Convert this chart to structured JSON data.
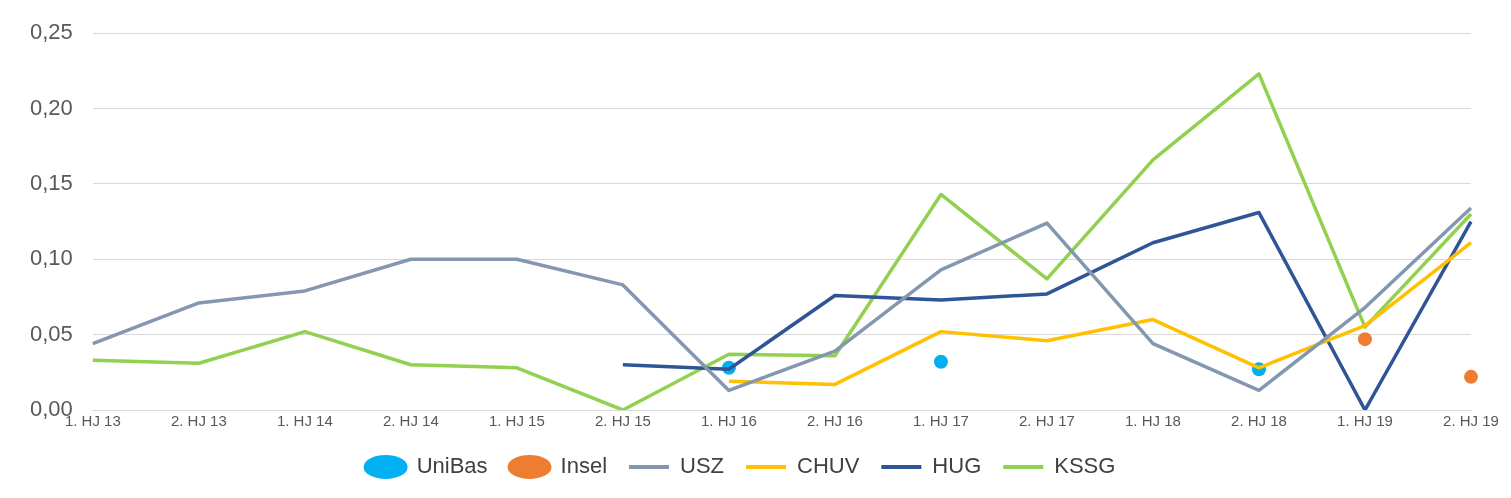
{
  "chart_data": {
    "type": "line",
    "categories": [
      "1. HJ 13",
      "2. HJ 13",
      "1. HJ 14",
      "2. HJ 14",
      "1. HJ 15",
      "2. HJ 15",
      "1. HJ 16",
      "2. HJ 16",
      "1. HJ 17",
      "2. HJ 17",
      "1. HJ 18",
      "2. HJ 18",
      "1. HJ 19",
      "2. HJ 19"
    ],
    "series": [
      {
        "name": "UniBas",
        "color": "#00b0f0",
        "type": "scatter",
        "marker": "circle",
        "values": [
          null,
          null,
          null,
          null,
          null,
          null,
          0.028,
          null,
          0.032,
          null,
          null,
          0.027,
          null,
          null
        ]
      },
      {
        "name": "Insel",
        "color": "#ed7d31",
        "type": "scatter",
        "marker": "circle",
        "values": [
          null,
          null,
          null,
          null,
          null,
          null,
          null,
          null,
          null,
          null,
          null,
          null,
          0.047,
          0.022
        ]
      },
      {
        "name": "USZ",
        "color": "#8497b0",
        "marker": "none",
        "values": [
          0.044,
          0.071,
          0.079,
          0.1,
          0.1,
          0.083,
          0.013,
          0.039,
          0.093,
          0.124,
          0.044,
          0.013,
          0.068,
          0.134
        ]
      },
      {
        "name": "CHUV",
        "color": "#ffc000",
        "marker": "none",
        "values": [
          null,
          null,
          null,
          null,
          null,
          null,
          0.019,
          0.017,
          0.052,
          0.046,
          0.06,
          0.028,
          0.056,
          0.111
        ]
      },
      {
        "name": "HUG",
        "color": "#2f5597",
        "marker": "none",
        "values": [
          null,
          null,
          null,
          null,
          null,
          0.03,
          0.027,
          0.076,
          0.073,
          0.077,
          0.111,
          0.131,
          0,
          0.125
        ]
      },
      {
        "name": "KSSG",
        "color": "#92d050",
        "marker": "none",
        "values": [
          0.033,
          0.031,
          0.052,
          0.03,
          0.028,
          0,
          0.037,
          0.036,
          0.143,
          0.087,
          0.166,
          0.223,
          0.055,
          0.13
        ]
      }
    ],
    "ylim": [
      0,
      0.25
    ],
    "yticks": [
      {
        "value": 0,
        "label": "0,00"
      },
      {
        "value": 0.05,
        "label": "0,05"
      },
      {
        "value": 0.1,
        "label": "0,10"
      },
      {
        "value": 0.15,
        "label": "0,15"
      },
      {
        "value": 0.2,
        "label": "0,20"
      },
      {
        "value": 0.25,
        "label": "0,25"
      }
    ],
    "grid": "y",
    "legend": "bottom"
  }
}
